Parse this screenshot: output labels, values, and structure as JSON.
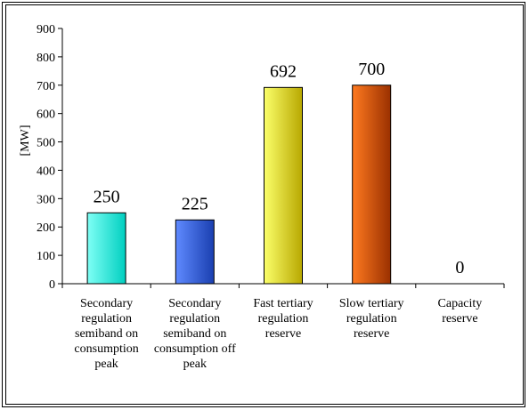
{
  "chart_data": {
    "type": "bar",
    "ylabel": "[MW]",
    "ylim": [
      0,
      900
    ],
    "yticks": [
      0,
      100,
      200,
      300,
      400,
      500,
      600,
      700,
      800,
      900
    ],
    "categories": [
      [
        "Secondary",
        "regulation",
        "semiband on",
        "consumption",
        "peak"
      ],
      [
        "Secondary",
        "regulation",
        "semiband on",
        "consumption off",
        "peak"
      ],
      [
        "Fast tertiary",
        "regulation",
        "reserve"
      ],
      [
        "Slow tertiary",
        "regulation",
        "reserve"
      ],
      [
        "Capacity",
        "reserve"
      ]
    ],
    "values": [
      250,
      225,
      692,
      700,
      0
    ],
    "data_labels": [
      "250",
      "225",
      "692",
      "700",
      "0"
    ],
    "colors": [
      [
        "#7ffff5",
        "#00cfc0"
      ],
      [
        "#5f8aff",
        "#1a3fb0"
      ],
      [
        "#fbff6a",
        "#b8a800"
      ],
      [
        "#ff7a20",
        "#9a3000"
      ],
      [
        "#cccccc",
        "#888888"
      ]
    ],
    "grid": false,
    "legend": "none"
  }
}
